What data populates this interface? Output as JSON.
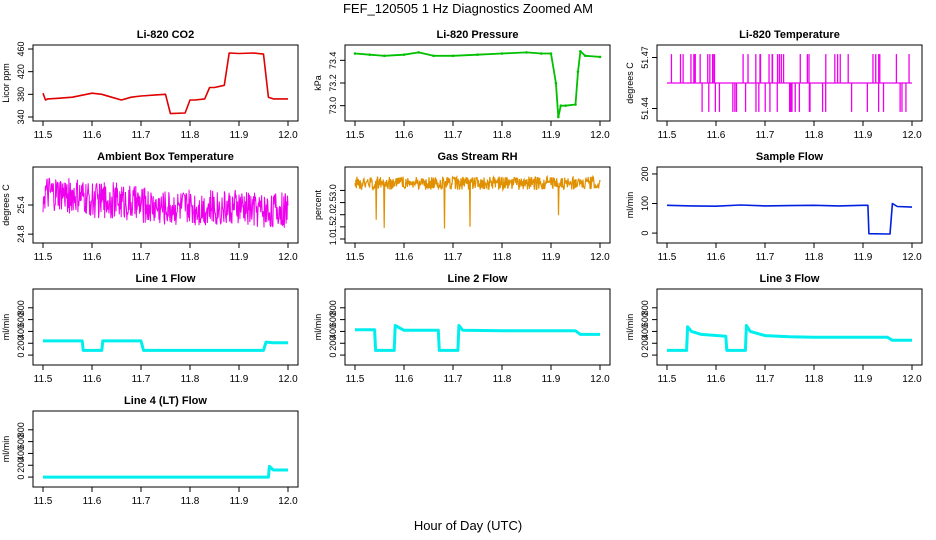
{
  "title": "FEF_120505  1 Hz Diagnostics Zoomed AM",
  "xlabel": "Hour of Day (UTC)",
  "chart_data": [
    {
      "type": "line",
      "title": "Li-820 CO2",
      "ylabel": "Licor ppm",
      "color": "#e00000",
      "xlim": [
        11.5,
        12.0
      ],
      "ylim": [
        340,
        460
      ],
      "yticks": [
        "340",
        "380",
        "420",
        "460"
      ],
      "xticks": [
        "11.5",
        "11.6",
        "11.7",
        "11.8",
        "11.9",
        "12.0"
      ],
      "series": [
        {
          "x": [
            11.5,
            11.505,
            11.51,
            11.53,
            11.56,
            11.6,
            11.62,
            11.64,
            11.66,
            11.68,
            11.7,
            11.73,
            11.75,
            11.76,
            11.79,
            11.8,
            11.81,
            11.83,
            11.84,
            11.85,
            11.87,
            11.88,
            11.9,
            11.93,
            11.95,
            11.96,
            11.97,
            12.0
          ],
          "values": [
            382,
            370,
            372,
            373,
            375,
            382,
            380,
            375,
            370,
            375,
            377,
            379,
            380,
            346,
            347,
            370,
            370,
            372,
            392,
            392,
            396,
            453,
            452,
            453,
            451,
            375,
            372,
            372
          ]
        }
      ]
    },
    {
      "type": "line",
      "title": "Li-820 Pressure",
      "ylabel": "kPa",
      "color": "#00c000",
      "xlim": [
        11.5,
        12.0
      ],
      "ylim": [
        72.9,
        73.5
      ],
      "yticks": [
        "73.0",
        "73.2",
        "73.4"
      ],
      "xticks": [
        "11.5",
        "11.6",
        "11.7",
        "11.8",
        "11.9",
        "12.0"
      ],
      "series": [
        {
          "x": [
            11.5,
            11.53,
            11.56,
            11.6,
            11.63,
            11.66,
            11.7,
            11.75,
            11.8,
            11.85,
            11.88,
            11.9,
            11.91,
            11.915,
            11.92,
            11.93,
            11.95,
            11.955,
            11.96,
            11.97,
            12.0
          ],
          "values": [
            73.46,
            73.45,
            73.44,
            73.45,
            73.47,
            73.44,
            73.44,
            73.45,
            73.46,
            73.47,
            73.46,
            73.46,
            73.2,
            72.9,
            73.0,
            73.0,
            73.01,
            73.3,
            73.48,
            73.44,
            73.43
          ]
        }
      ]
    },
    {
      "type": "line",
      "title": "Li-820 Temperature",
      "ylabel": "degrees C",
      "color": "#ee00ee",
      "xlim": [
        11.5,
        12.0
      ],
      "ylim": [
        51.435,
        51.475
      ],
      "yticks": [
        "51.44",
        "51.47"
      ],
      "xticks": [
        "11.5",
        "11.6",
        "11.7",
        "11.8",
        "11.9",
        "12.0"
      ],
      "series": [
        {
          "x": [
            11.5,
            12.0
          ],
          "values": [
            51.455,
            51.455
          ]
        }
      ]
    },
    {
      "type": "line",
      "title": "Ambient Box Temperature",
      "ylabel": "degrees C",
      "color": "#ee00ee",
      "xlim": [
        11.5,
        12.0
      ],
      "ylim": [
        24.7,
        26.1
      ],
      "yticks": [
        "24.8",
        "25.4"
      ],
      "xticks": [
        "11.5",
        "11.6",
        "11.7",
        "11.8",
        "11.9",
        "12.0"
      ],
      "series": [
        {
          "x": [
            11.5,
            11.55,
            11.6,
            11.65,
            11.7,
            11.75,
            11.8,
            11.85,
            11.9,
            11.95,
            12.0
          ],
          "values": [
            25.6,
            25.6,
            25.5,
            25.5,
            25.4,
            25.35,
            25.35,
            25.35,
            25.35,
            25.3,
            25.3
          ]
        }
      ]
    },
    {
      "type": "line",
      "title": "Gas Stream RH",
      "ylabel": "percent",
      "color": "#e09000",
      "xlim": [
        11.5,
        12.0
      ],
      "ylim": [
        1.0,
        3.8
      ],
      "yticks": [
        "1.0",
        "1.5",
        "2.0",
        "2.5",
        "3.0"
      ],
      "xticks": [
        "11.5",
        "11.6",
        "11.7",
        "11.8",
        "11.9",
        "12.0"
      ],
      "series": [
        {
          "x": [
            11.5,
            12.0
          ],
          "values": [
            3.3,
            3.3
          ]
        }
      ]
    },
    {
      "type": "line",
      "title": "Sample Flow",
      "ylabel": "ml/min",
      "color": "#0020e0",
      "xlim": [
        11.5,
        12.0
      ],
      "ylim": [
        -20,
        210
      ],
      "yticks": [
        "0",
        "100",
        "200"
      ],
      "xticks": [
        "11.5",
        "11.6",
        "11.7",
        "11.8",
        "11.9",
        "12.0"
      ],
      "series": [
        {
          "x": [
            11.5,
            11.55,
            11.6,
            11.65,
            11.7,
            11.75,
            11.8,
            11.85,
            11.9,
            11.91,
            11.912,
            11.95,
            11.955,
            11.96,
            11.97,
            12.0
          ],
          "values": [
            94,
            92,
            91,
            95,
            92,
            93,
            94,
            92,
            94,
            94,
            -2,
            -3,
            -3,
            100,
            90,
            88
          ]
        }
      ]
    },
    {
      "type": "line",
      "title": "Line 1 Flow",
      "ylabel": "ml/min",
      "color": "#00eeee",
      "xlim": [
        11.5,
        12.0
      ],
      "ylim": [
        -100,
        1050
      ],
      "yticks": [
        "0",
        "200",
        "400",
        "600",
        "800"
      ],
      "xticks": [
        "11.5",
        "11.6",
        "11.7",
        "11.8",
        "11.9",
        "12.0"
      ],
      "series": [
        {
          "x": [
            11.5,
            11.58,
            11.582,
            11.62,
            11.622,
            11.7,
            11.705,
            11.8,
            11.9,
            11.95,
            11.955,
            11.97,
            12.0
          ],
          "values": [
            240,
            240,
            80,
            80,
            240,
            240,
            80,
            80,
            80,
            80,
            220,
            210,
            210
          ]
        }
      ]
    },
    {
      "type": "line",
      "title": "Line 2 Flow",
      "ylabel": "ml/min",
      "color": "#00eeee",
      "xlim": [
        11.5,
        12.0
      ],
      "ylim": [
        -100,
        1050
      ],
      "yticks": [
        "0",
        "200",
        "400",
        "600",
        "800"
      ],
      "xticks": [
        "11.5",
        "11.6",
        "11.7",
        "11.8",
        "11.9",
        "12.0"
      ],
      "series": [
        {
          "x": [
            11.5,
            11.54,
            11.542,
            11.58,
            11.582,
            11.6,
            11.67,
            11.672,
            11.71,
            11.712,
            11.72,
            11.8,
            11.9,
            11.95,
            11.96,
            12.0
          ],
          "values": [
            430,
            430,
            80,
            80,
            500,
            420,
            420,
            80,
            80,
            500,
            420,
            410,
            410,
            410,
            350,
            350
          ]
        }
      ]
    },
    {
      "type": "line",
      "title": "Line 3 Flow",
      "ylabel": "ml/min",
      "color": "#00eeee",
      "xlim": [
        11.5,
        12.0
      ],
      "ylim": [
        -100,
        1050
      ],
      "yticks": [
        "0",
        "200",
        "400",
        "600",
        "800"
      ],
      "xticks": [
        "11.5",
        "11.6",
        "11.7",
        "11.8",
        "11.9",
        "12.0"
      ],
      "series": [
        {
          "x": [
            11.5,
            11.54,
            11.542,
            11.55,
            11.57,
            11.62,
            11.622,
            11.66,
            11.662,
            11.67,
            11.7,
            11.75,
            11.8,
            11.9,
            11.95,
            11.96,
            12.0
          ],
          "values": [
            80,
            80,
            480,
            400,
            350,
            320,
            80,
            80,
            500,
            400,
            330,
            310,
            300,
            300,
            300,
            250,
            250
          ]
        }
      ]
    },
    {
      "type": "line",
      "title": "Line 4 (LT) Flow",
      "ylabel": "ml/min",
      "color": "#00eeee",
      "xlim": [
        11.5,
        12.0
      ],
      "ylim": [
        -100,
        1050
      ],
      "yticks": [
        "0",
        "200",
        "400",
        "600",
        "800"
      ],
      "xticks": [
        "11.5",
        "11.6",
        "11.7",
        "11.8",
        "11.9",
        "12.0"
      ],
      "series": [
        {
          "x": [
            11.5,
            11.96,
            11.962,
            11.97,
            12.0
          ],
          "values": [
            0,
            0,
            180,
            120,
            120
          ]
        }
      ]
    }
  ]
}
